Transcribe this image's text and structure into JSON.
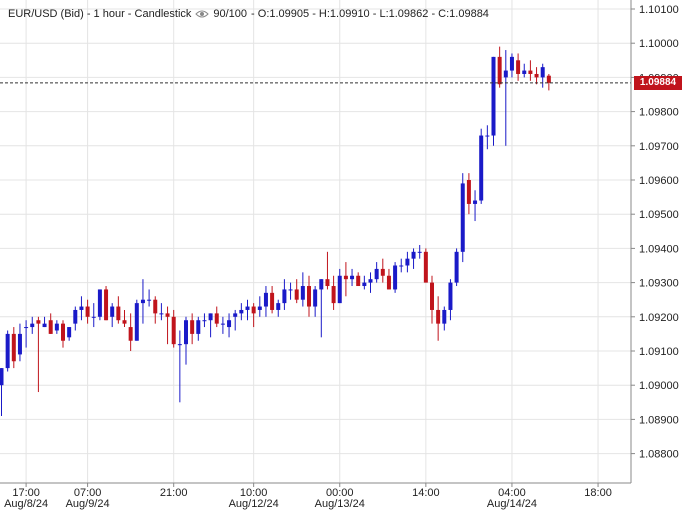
{
  "header": {
    "symbol_label": "EUR/USD (Bid) - 1 hour - Candlestick",
    "eye_icon": "eye-icon",
    "bars_label": "90/100",
    "ohlc_text": "- O:1.09905 - H:1.09910 - L:1.09862 - C:1.09884"
  },
  "colors": {
    "up": "#1a1ac8",
    "down": "#c0141c",
    "grid": "#e4e4e4",
    "axis": "#888888"
  },
  "current_price": {
    "label": "1.09884",
    "value": 1.09884
  },
  "chart_data": {
    "type": "candlestick",
    "title": "EUR/USD (Bid) - 1 hour - Candlestick",
    "ylim": [
      1.0878,
      1.1013
    ],
    "grid": true,
    "y_ticks": [
      {
        "value": 1.101,
        "label": "1.10100"
      },
      {
        "value": 1.1,
        "label": "1.10000"
      },
      {
        "value": 1.099,
        "label": "1.09900"
      },
      {
        "value": 1.098,
        "label": "1.09800"
      },
      {
        "value": 1.097,
        "label": "1.09700"
      },
      {
        "value": 1.096,
        "label": "1.09600"
      },
      {
        "value": 1.095,
        "label": "1.09500"
      },
      {
        "value": 1.094,
        "label": "1.09400"
      },
      {
        "value": 1.093,
        "label": "1.09300"
      },
      {
        "value": 1.092,
        "label": "1.09200"
      },
      {
        "value": 1.091,
        "label": "1.09100"
      },
      {
        "value": 1.09,
        "label": "1.09000"
      },
      {
        "value": 1.089,
        "label": "1.08900"
      },
      {
        "value": 1.088,
        "label": "1.08800"
      }
    ],
    "x_ticks": [
      {
        "index": 4,
        "time": "17:00",
        "date": "Aug/8/24"
      },
      {
        "index": 14,
        "time": "07:00",
        "date": "Aug/9/24"
      },
      {
        "index": 28,
        "time": "21:00",
        "date": ""
      },
      {
        "index": 41,
        "time": "10:00",
        "date": "Aug/12/24"
      },
      {
        "index": 55,
        "time": "00:00",
        "date": "Aug/13/24"
      },
      {
        "index": 69,
        "time": "14:00",
        "date": ""
      },
      {
        "index": 83,
        "time": "04:00",
        "date": "Aug/14/24"
      },
      {
        "index": 97,
        "time": "18:00",
        "date": ""
      }
    ],
    "candles": [
      {
        "o": 1.09,
        "h": 1.0905,
        "l": 1.0891,
        "c": 1.0905
      },
      {
        "o": 1.0905,
        "h": 1.0916,
        "l": 1.0904,
        "c": 1.0915
      },
      {
        "o": 1.0915,
        "h": 1.0917,
        "l": 1.0905,
        "c": 1.0907
      },
      {
        "o": 1.0909,
        "h": 1.0918,
        "l": 1.0907,
        "c": 1.0915
      },
      {
        "o": 1.0917,
        "h": 1.0919,
        "l": 1.0911,
        "c": 1.0917
      },
      {
        "o": 1.0917,
        "h": 1.092,
        "l": 1.0915,
        "c": 1.0918
      },
      {
        "o": 1.0919,
        "h": 1.092,
        "l": 1.0898,
        "c": 1.0918
      },
      {
        "o": 1.0917,
        "h": 1.092,
        "l": 1.0917,
        "c": 1.0918
      },
      {
        "o": 1.0919,
        "h": 1.0921,
        "l": 1.0915,
        "c": 1.0915
      },
      {
        "o": 1.0916,
        "h": 1.0919,
        "l": 1.0915,
        "c": 1.0918
      },
      {
        "o": 1.0918,
        "h": 1.0919,
        "l": 1.0911,
        "c": 1.0913
      },
      {
        "o": 1.0914,
        "h": 1.0917,
        "l": 1.0913,
        "c": 1.0917
      },
      {
        "o": 1.0918,
        "h": 1.0923,
        "l": 1.0916,
        "c": 1.0922
      },
      {
        "o": 1.0922,
        "h": 1.0926,
        "l": 1.0919,
        "c": 1.0923
      },
      {
        "o": 1.0923,
        "h": 1.0925,
        "l": 1.0918,
        "c": 1.092
      },
      {
        "o": 1.092,
        "h": 1.0924,
        "l": 1.0917,
        "c": 1.092
      },
      {
        "o": 1.092,
        "h": 1.0928,
        "l": 1.0919,
        "c": 1.0928
      },
      {
        "o": 1.0928,
        "h": 1.0929,
        "l": 1.0919,
        "c": 1.0919
      },
      {
        "o": 1.092,
        "h": 1.0924,
        "l": 1.0917,
        "c": 1.0923
      },
      {
        "o": 1.0923,
        "h": 1.0926,
        "l": 1.0918,
        "c": 1.0919
      },
      {
        "o": 1.0919,
        "h": 1.0922,
        "l": 1.0917,
        "c": 1.0918
      },
      {
        "o": 1.0917,
        "h": 1.0921,
        "l": 1.091,
        "c": 1.0913
      },
      {
        "o": 1.0913,
        "h": 1.0925,
        "l": 1.0913,
        "c": 1.0924
      },
      {
        "o": 1.0924,
        "h": 1.0931,
        "l": 1.0918,
        "c": 1.0925
      },
      {
        "o": 1.0925,
        "h": 1.0928,
        "l": 1.0923,
        "c": 1.0925
      },
      {
        "o": 1.0925,
        "h": 1.0926,
        "l": 1.0918,
        "c": 1.0921
      },
      {
        "o": 1.0921,
        "h": 1.0924,
        "l": 1.0919,
        "c": 1.0921
      },
      {
        "o": 1.0921,
        "h": 1.0923,
        "l": 1.0912,
        "c": 1.092
      },
      {
        "o": 1.092,
        "h": 1.0922,
        "l": 1.0911,
        "c": 1.0912
      },
      {
        "o": 1.0912,
        "h": 1.0916,
        "l": 1.0895,
        "c": 1.0912
      },
      {
        "o": 1.0912,
        "h": 1.092,
        "l": 1.0906,
        "c": 1.0919
      },
      {
        "o": 1.0919,
        "h": 1.0921,
        "l": 1.0912,
        "c": 1.0915
      },
      {
        "o": 1.0915,
        "h": 1.092,
        "l": 1.0913,
        "c": 1.0919
      },
      {
        "o": 1.0919,
        "h": 1.0921,
        "l": 1.0917,
        "c": 1.0919
      },
      {
        "o": 1.0919,
        "h": 1.0921,
        "l": 1.0914,
        "c": 1.0921
      },
      {
        "o": 1.0921,
        "h": 1.0923,
        "l": 1.0917,
        "c": 1.0918
      },
      {
        "o": 1.0918,
        "h": 1.092,
        "l": 1.0915,
        "c": 1.0918
      },
      {
        "o": 1.0917,
        "h": 1.0921,
        "l": 1.0914,
        "c": 1.0919
      },
      {
        "o": 1.092,
        "h": 1.0922,
        "l": 1.0916,
        "c": 1.0921
      },
      {
        "o": 1.0921,
        "h": 1.0924,
        "l": 1.0919,
        "c": 1.0922
      },
      {
        "o": 1.0922,
        "h": 1.0925,
        "l": 1.0919,
        "c": 1.0923
      },
      {
        "o": 1.0923,
        "h": 1.0924,
        "l": 1.0917,
        "c": 1.0921
      },
      {
        "o": 1.0922,
        "h": 1.0926,
        "l": 1.092,
        "c": 1.0923
      },
      {
        "o": 1.0923,
        "h": 1.0929,
        "l": 1.092,
        "c": 1.0927
      },
      {
        "o": 1.0927,
        "h": 1.0929,
        "l": 1.0921,
        "c": 1.0922
      },
      {
        "o": 1.0922,
        "h": 1.0925,
        "l": 1.092,
        "c": 1.0924
      },
      {
        "o": 1.0924,
        "h": 1.0931,
        "l": 1.0922,
        "c": 1.0928
      },
      {
        "o": 1.0928,
        "h": 1.093,
        "l": 1.0925,
        "c": 1.0928
      },
      {
        "o": 1.0928,
        "h": 1.0931,
        "l": 1.0924,
        "c": 1.0925
      },
      {
        "o": 1.0925,
        "h": 1.0933,
        "l": 1.0923,
        "c": 1.0929
      },
      {
        "o": 1.0929,
        "h": 1.0932,
        "l": 1.092,
        "c": 1.0923
      },
      {
        "o": 1.0923,
        "h": 1.0929,
        "l": 1.092,
        "c": 1.0928
      },
      {
        "o": 1.0928,
        "h": 1.0931,
        "l": 1.0914,
        "c": 1.0931
      },
      {
        "o": 1.0931,
        "h": 1.0939,
        "l": 1.0928,
        "c": 1.0929
      },
      {
        "o": 1.0929,
        "h": 1.0932,
        "l": 1.0922,
        "c": 1.0924
      },
      {
        "o": 1.0924,
        "h": 1.0934,
        "l": 1.0924,
        "c": 1.0932
      },
      {
        "o": 1.0932,
        "h": 1.0936,
        "l": 1.0926,
        "c": 1.0931
      },
      {
        "o": 1.0931,
        "h": 1.0934,
        "l": 1.0929,
        "c": 1.0932
      },
      {
        "o": 1.0932,
        "h": 1.0933,
        "l": 1.0929,
        "c": 1.0929
      },
      {
        "o": 1.0929,
        "h": 1.0932,
        "l": 1.0928,
        "c": 1.093
      },
      {
        "o": 1.093,
        "h": 1.0933,
        "l": 1.0927,
        "c": 1.0931
      },
      {
        "o": 1.0931,
        "h": 1.0936,
        "l": 1.093,
        "c": 1.0934
      },
      {
        "o": 1.0934,
        "h": 1.0937,
        "l": 1.093,
        "c": 1.0932
      },
      {
        "o": 1.0932,
        "h": 1.0934,
        "l": 1.0928,
        "c": 1.0928
      },
      {
        "o": 1.0928,
        "h": 1.0936,
        "l": 1.0927,
        "c": 1.0935
      },
      {
        "o": 1.0935,
        "h": 1.0937,
        "l": 1.0933,
        "c": 1.0935
      },
      {
        "o": 1.0935,
        "h": 1.0939,
        "l": 1.0933,
        "c": 1.0937
      },
      {
        "o": 1.0937,
        "h": 1.094,
        "l": 1.0934,
        "c": 1.0939
      },
      {
        "o": 1.0939,
        "h": 1.0941,
        "l": 1.0937,
        "c": 1.0939
      },
      {
        "o": 1.0939,
        "h": 1.094,
        "l": 1.093,
        "c": 1.093
      },
      {
        "o": 1.093,
        "h": 1.0932,
        "l": 1.0918,
        "c": 1.0922
      },
      {
        "o": 1.0922,
        "h": 1.0926,
        "l": 1.0913,
        "c": 1.0918
      },
      {
        "o": 1.0918,
        "h": 1.0923,
        "l": 1.0916,
        "c": 1.0922
      },
      {
        "o": 1.0922,
        "h": 1.0931,
        "l": 1.0919,
        "c": 1.093
      },
      {
        "o": 1.093,
        "h": 1.094,
        "l": 1.0929,
        "c": 1.0939
      },
      {
        "o": 1.0939,
        "h": 1.0962,
        "l": 1.0936,
        "c": 1.0959
      },
      {
        "o": 1.096,
        "h": 1.0962,
        "l": 1.095,
        "c": 1.0953
      },
      {
        "o": 1.0953,
        "h": 1.0957,
        "l": 1.0948,
        "c": 1.0954
      },
      {
        "o": 1.0954,
        "h": 1.0975,
        "l": 1.0953,
        "c": 1.0973
      },
      {
        "o": 1.0973,
        "h": 1.0976,
        "l": 1.0969,
        "c": 1.0973
      },
      {
        "o": 1.0973,
        "h": 1.0996,
        "l": 1.097,
        "c": 1.0996
      },
      {
        "o": 1.0996,
        "h": 1.0999,
        "l": 1.0987,
        "c": 1.0988
      },
      {
        "o": 1.099,
        "h": 1.0998,
        "l": 1.097,
        "c": 1.0992
      },
      {
        "o": 1.0992,
        "h": 1.0997,
        "l": 1.099,
        "c": 1.0996
      },
      {
        "o": 1.0995,
        "h": 1.0997,
        "l": 1.0989,
        "c": 1.0991
      },
      {
        "o": 1.0991,
        "h": 1.0994,
        "l": 1.099,
        "c": 1.0992
      },
      {
        "o": 1.0992,
        "h": 1.0995,
        "l": 1.0989,
        "c": 1.0991
      },
      {
        "o": 1.0991,
        "h": 1.0993,
        "l": 1.0988,
        "c": 1.099
      },
      {
        "o": 1.099,
        "h": 1.0994,
        "l": 1.0987,
        "c": 1.0993
      },
      {
        "o": 1.09905,
        "h": 1.0991,
        "l": 1.09862,
        "c": 1.09884
      }
    ]
  }
}
